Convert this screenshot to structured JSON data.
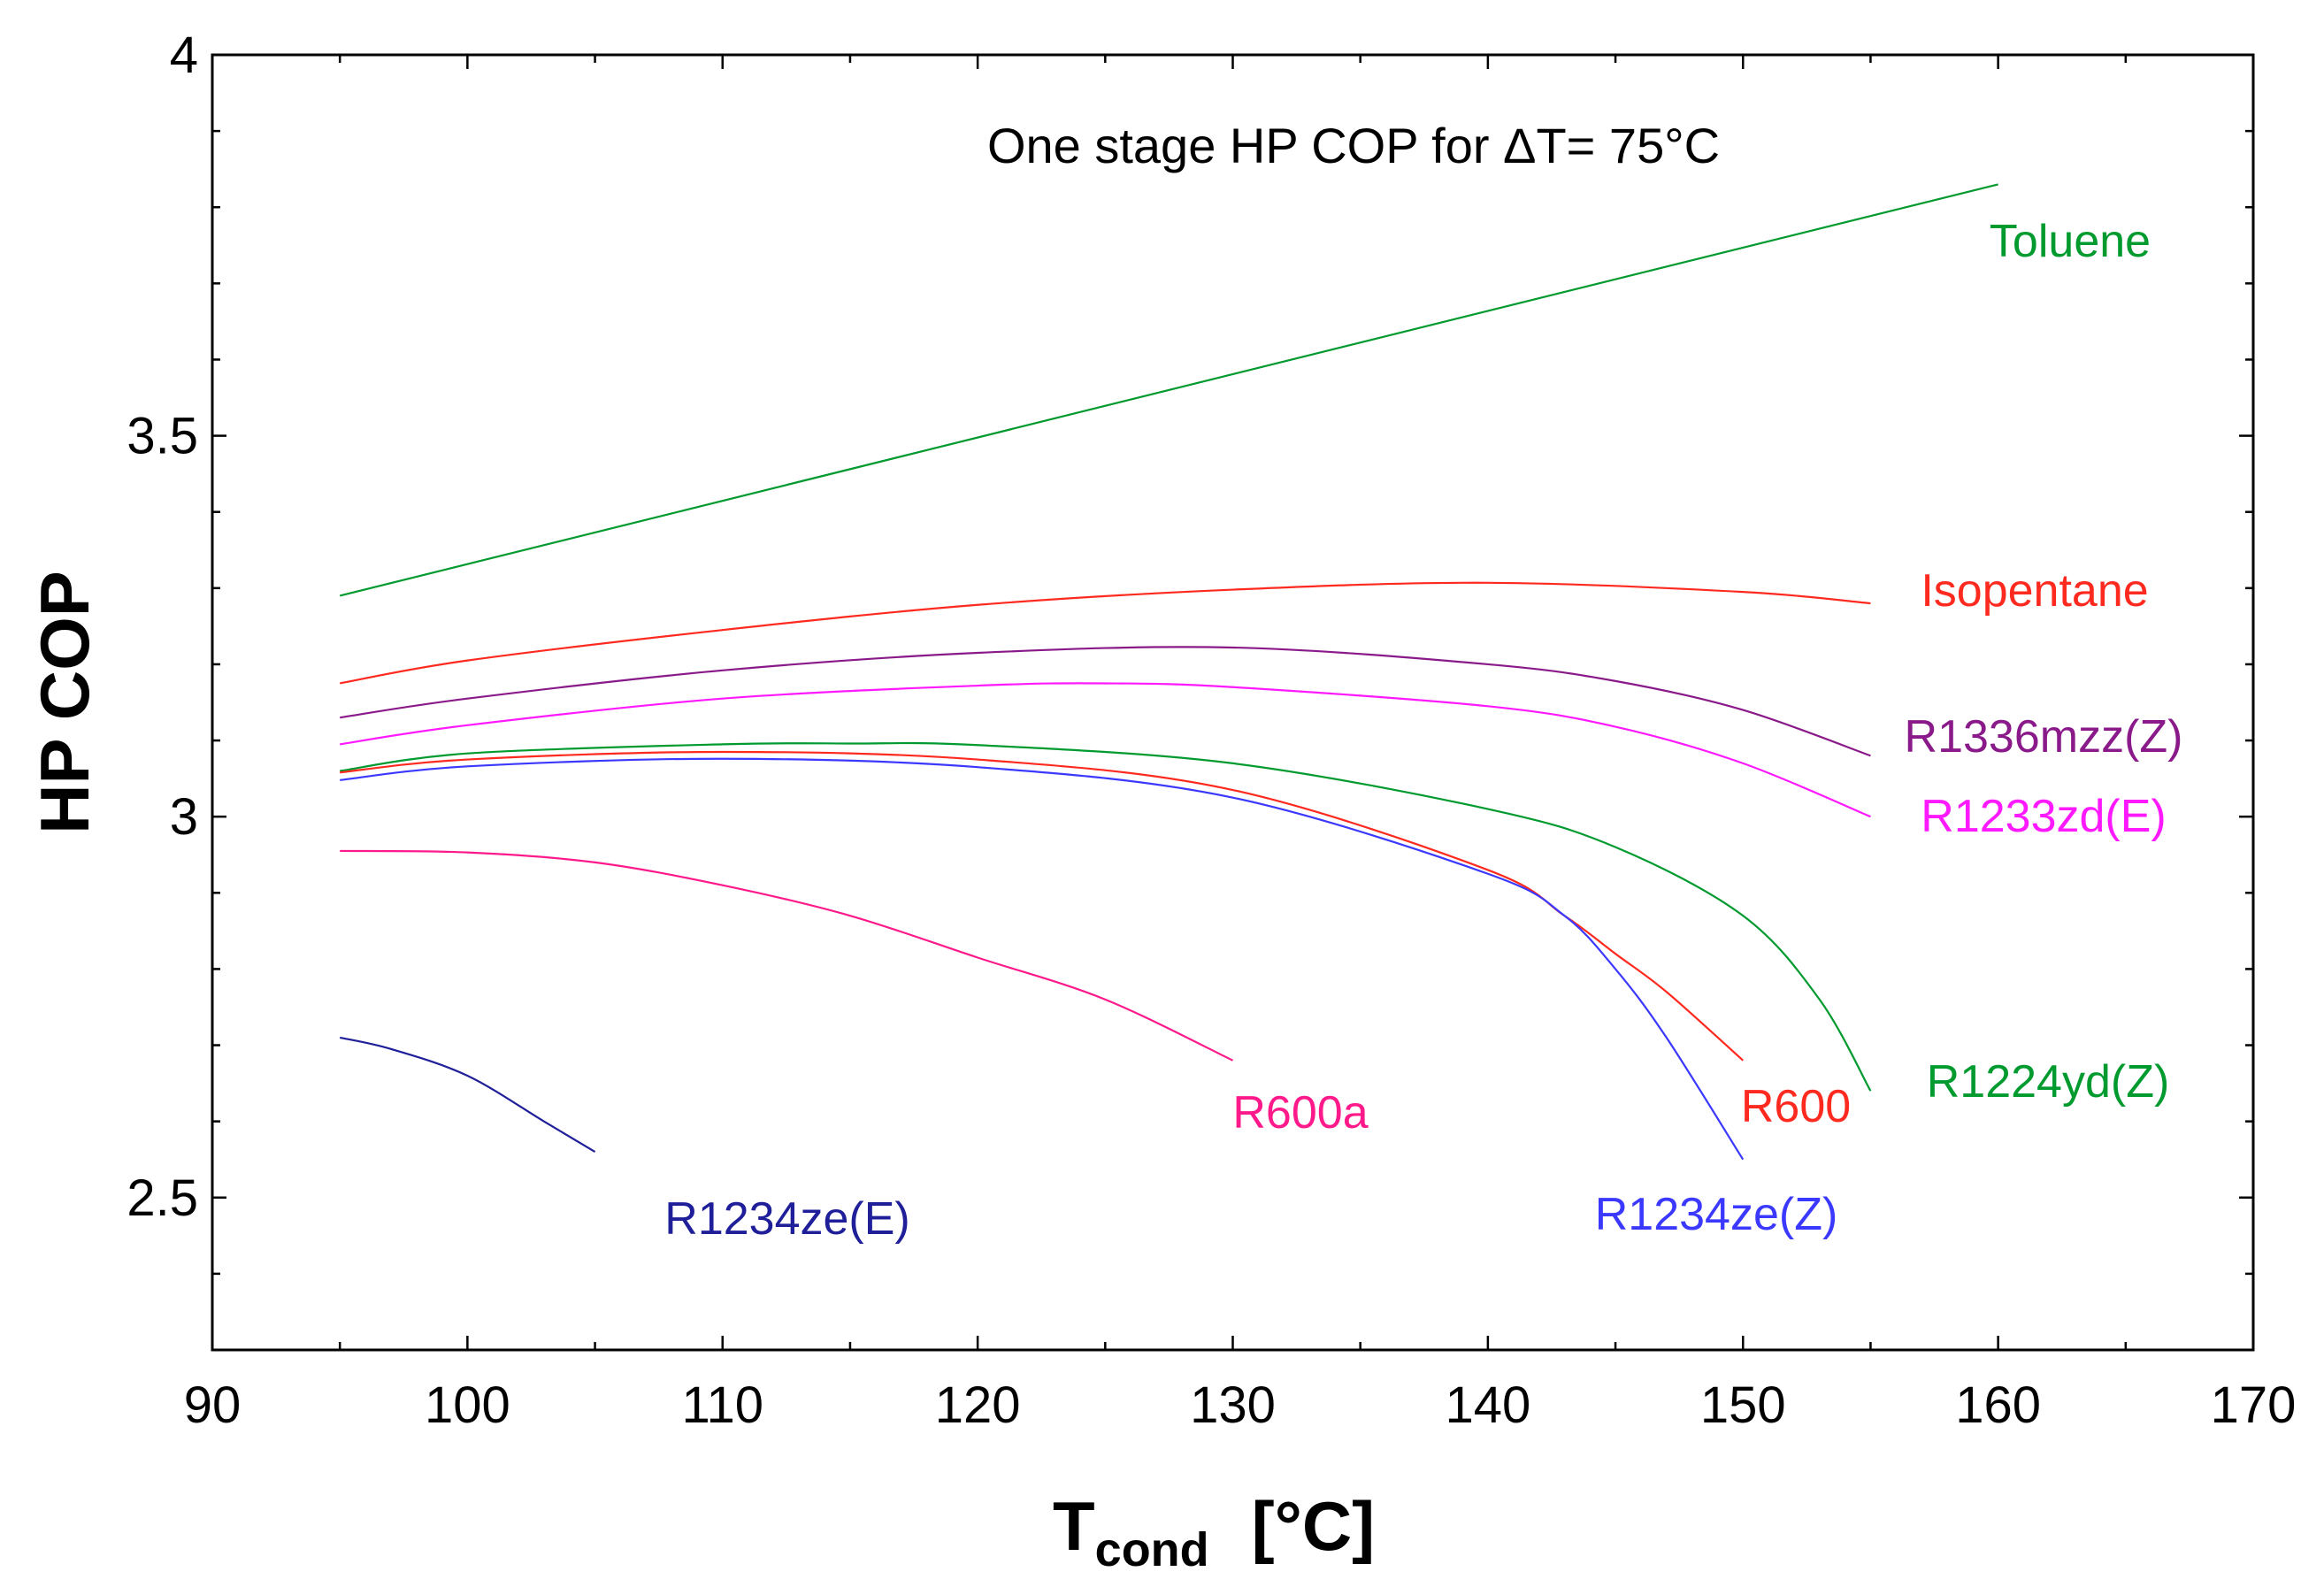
{
  "chart_data": {
    "type": "line",
    "title": "One stage HP COP for ΔT= 75°C",
    "xlabel": "T",
    "xlabel_subscript": "cond",
    "xlabel_unit": "[°C]",
    "ylabel": "HP COP",
    "xlim": [
      90,
      170
    ],
    "ylim": [
      2.3,
      4.0
    ],
    "xticks": [
      90,
      100,
      110,
      120,
      130,
      140,
      150,
      160,
      170
    ],
    "xtick_labels": [
      "90",
      "100",
      "110",
      "120",
      "130",
      "140",
      "150",
      "160",
      "170"
    ],
    "yticks": [
      2.5,
      3.0,
      3.5,
      4.0
    ],
    "ytick_labels": [
      "2.5",
      "3",
      "3.5",
      "4"
    ],
    "grid": false,
    "series": [
      {
        "name": "Toluene",
        "color": "#009a2e",
        "x": [
          95,
          160
        ],
        "y": [
          3.29,
          3.83
        ]
      },
      {
        "name": "Isopentane",
        "color": "#ff2a1f",
        "x": [
          95,
          100,
          110,
          120,
          130,
          140,
          150,
          155
        ],
        "y": [
          3.175,
          3.205,
          3.245,
          3.278,
          3.298,
          3.307,
          3.295,
          3.28
        ]
      },
      {
        "name": "R1336mzz(Z)",
        "color": "#8a1a8a",
        "x": [
          95,
          100,
          110,
          120,
          130,
          140,
          145,
          150,
          155
        ],
        "y": [
          3.13,
          3.155,
          3.192,
          3.215,
          3.222,
          3.2,
          3.178,
          3.14,
          3.08
        ]
      },
      {
        "name": "R1233zd(E)",
        "color": "#ff19ff",
        "x": [
          95,
          100,
          110,
          120,
          125,
          130,
          140,
          145,
          150,
          155
        ],
        "y": [
          3.095,
          3.12,
          3.155,
          3.172,
          3.175,
          3.17,
          3.145,
          3.118,
          3.07,
          3.0
        ]
      },
      {
        "name": "R1224yd(Z)",
        "color": "#009a2e",
        "x": [
          95,
          100,
          110,
          115,
          120,
          130,
          140,
          145,
          150,
          153,
          155
        ],
        "y": [
          3.06,
          3.083,
          3.095,
          3.096,
          3.094,
          3.07,
          3.01,
          2.96,
          2.87,
          2.76,
          2.64
        ]
      },
      {
        "name": "R600",
        "color": "#ff2a1f",
        "x": [
          95,
          100,
          110,
          120,
          130,
          140,
          143,
          145,
          147,
          150
        ],
        "y": [
          3.058,
          3.075,
          3.085,
          3.075,
          3.035,
          2.93,
          2.87,
          2.82,
          2.77,
          2.68
        ]
      },
      {
        "name": "R1234ze(Z)",
        "color": "#3b38ff",
        "x": [
          95,
          100,
          110,
          120,
          130,
          140,
          143,
          145,
          147,
          150
        ],
        "y": [
          3.048,
          3.066,
          3.076,
          3.065,
          3.025,
          2.925,
          2.87,
          2.8,
          2.71,
          2.55
        ]
      },
      {
        "name": "R600a",
        "color": "#ff1a8c",
        "x": [
          95,
          100,
          105,
          110,
          115,
          120,
          125,
          130
        ],
        "y": [
          2.955,
          2.953,
          2.94,
          2.91,
          2.87,
          2.815,
          2.76,
          2.68
        ]
      },
      {
        "name": "R1234ze(E)",
        "color": "#1f1f99",
        "x": [
          95,
          97,
          100,
          103,
          105
        ],
        "y": [
          2.71,
          2.695,
          2.66,
          2.6,
          2.56
        ]
      }
    ]
  }
}
